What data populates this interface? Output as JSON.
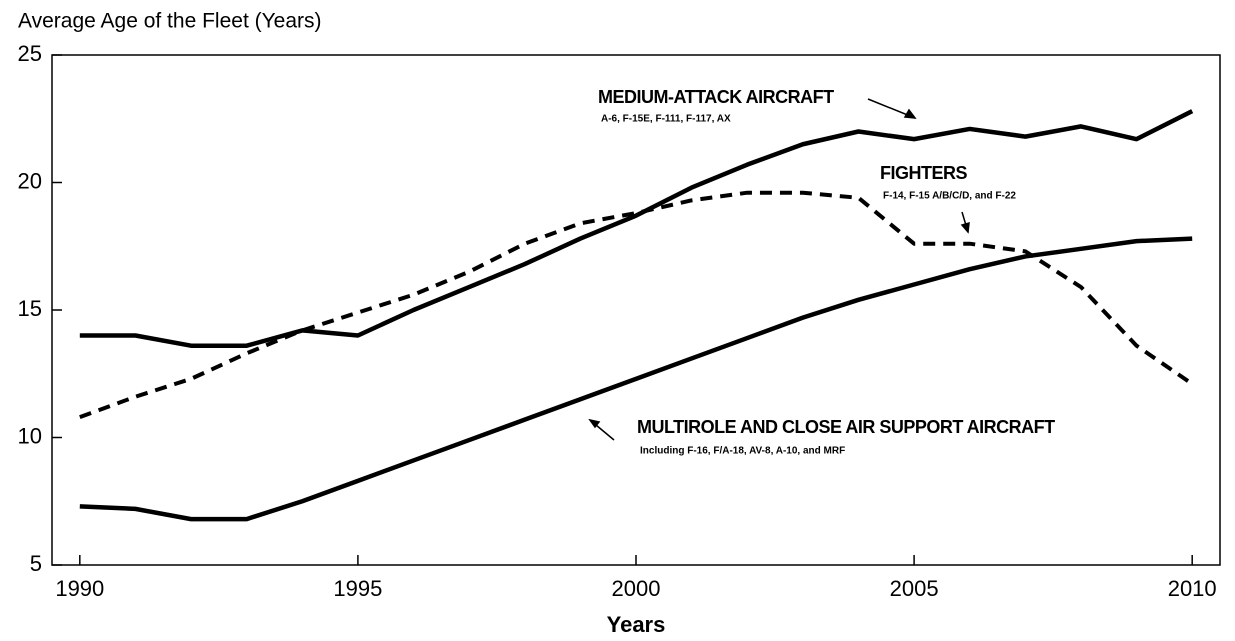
{
  "chart_data": {
    "type": "line",
    "title": "Average Age of the Fleet (Years)",
    "x_label": "Years",
    "x": [
      1990,
      1991,
      1992,
      1993,
      1994,
      1995,
      1996,
      1997,
      1998,
      1999,
      2000,
      2001,
      2002,
      2003,
      2004,
      2005,
      2006,
      2007,
      2008,
      2009,
      2010
    ],
    "series": [
      {
        "name": "MEDIUM-ATTACK AIRCRAFT",
        "annotation": "A-6, F-15E, F-111, F-117, AX",
        "color": "#000000",
        "dashed": false,
        "values": [
          14.0,
          14.0,
          13.6,
          13.6,
          14.2,
          14.0,
          15.0,
          15.9,
          16.8,
          17.8,
          18.7,
          19.8,
          20.7,
          21.5,
          22.0,
          21.7,
          22.1,
          21.8,
          22.2,
          21.7,
          22.8
        ]
      },
      {
        "name": "FIGHTERS",
        "annotation": "F-14, F-15 A/B/C/D, and F-22",
        "color": "#000000",
        "dashed": true,
        "values": [
          10.8,
          11.6,
          12.3,
          13.3,
          14.2,
          14.9,
          15.6,
          16.5,
          17.6,
          18.4,
          18.8,
          19.3,
          19.6,
          19.6,
          19.4,
          17.6,
          17.6,
          17.3,
          15.9,
          13.6,
          12.1
        ]
      },
      {
        "name": "MULTIROLE AND CLOSE AIR SUPPORT AIRCRAFT",
        "annotation": "Including F-16, F/A-18, AV-8, A-10, and MRF",
        "color": "#000000",
        "dashed": false,
        "values": [
          7.3,
          7.2,
          6.8,
          6.8,
          7.5,
          8.3,
          9.1,
          9.9,
          10.7,
          11.5,
          12.3,
          13.1,
          13.9,
          14.7,
          15.4,
          16.0,
          16.6,
          17.1,
          17.4,
          17.7,
          17.8
        ]
      }
    ],
    "xlim": [
      1989.5,
      2010.5
    ],
    "xticks": [
      1990,
      1995,
      2000,
      2005,
      2010
    ],
    "ylim": [
      5,
      25
    ],
    "yticks": [
      5,
      10,
      15,
      20,
      25
    ]
  }
}
